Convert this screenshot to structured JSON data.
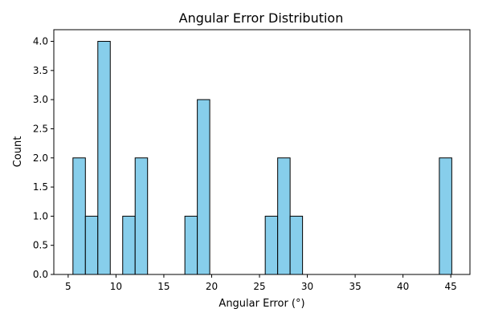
{
  "chart_data": {
    "type": "bar",
    "title": "Angular Error Distribution",
    "xlabel": "Angular Error (°)",
    "ylabel": "Count",
    "xlim": [
      3.5,
      47.0
    ],
    "ylim": [
      0,
      4.2
    ],
    "xticks": [
      5,
      10,
      15,
      20,
      25,
      30,
      35,
      40,
      45
    ],
    "yticks": [
      0.0,
      0.5,
      1.0,
      1.5,
      2.0,
      2.5,
      3.0,
      3.5,
      4.0
    ],
    "ytick_labels": [
      "0.0",
      "0.5",
      "1.0",
      "1.5",
      "2.0",
      "2.5",
      "3.0",
      "3.5",
      "4.0"
    ],
    "bin_width": 1.3,
    "bins": [
      {
        "start": 5.5,
        "end": 6.8,
        "count": 2
      },
      {
        "start": 6.8,
        "end": 8.1,
        "count": 1
      },
      {
        "start": 8.1,
        "end": 9.4,
        "count": 4
      },
      {
        "start": 10.7,
        "end": 12.0,
        "count": 1
      },
      {
        "start": 12.0,
        "end": 13.3,
        "count": 2
      },
      {
        "start": 17.2,
        "end": 18.5,
        "count": 1
      },
      {
        "start": 18.5,
        "end": 19.8,
        "count": 3
      },
      {
        "start": 25.6,
        "end": 26.9,
        "count": 1
      },
      {
        "start": 26.9,
        "end": 28.2,
        "count": 2
      },
      {
        "start": 28.2,
        "end": 29.5,
        "count": 1
      },
      {
        "start": 29.5,
        "end": 30.8,
        "count": 0
      },
      {
        "start": 43.8,
        "end": 45.1,
        "count": 2
      }
    ],
    "bar_color": "#87CEEB",
    "edge_color": "#000000",
    "grid": false
  }
}
